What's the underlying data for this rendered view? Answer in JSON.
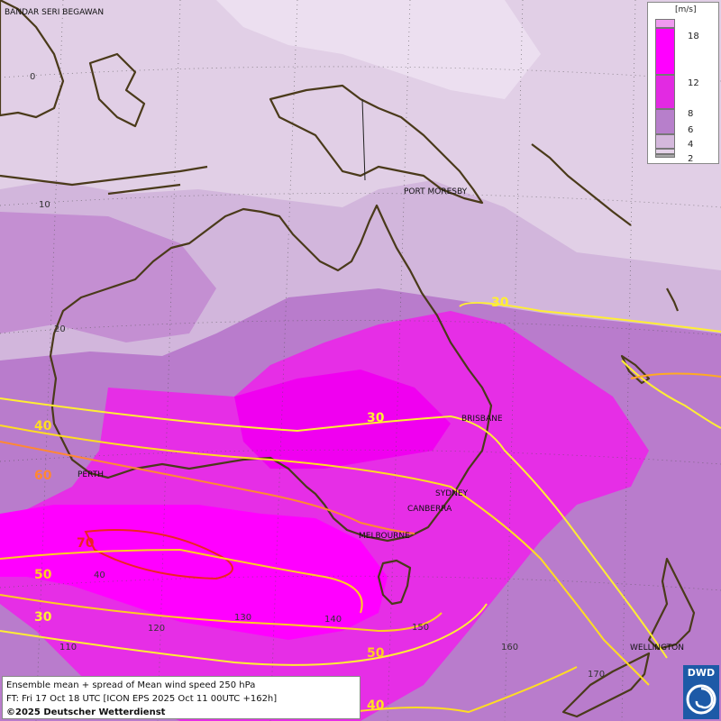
{
  "legend": {
    "unit": "[m/s]",
    "bins": [
      {
        "label": "2",
        "color": "#a8a8a8"
      },
      {
        "label": "4",
        "color": "#e4d2e8"
      },
      {
        "label": "6",
        "color": "#d4b8dc"
      },
      {
        "label": "8",
        "color": "#b77fcb"
      },
      {
        "label": "12",
        "color": "#e22ae2"
      },
      {
        "label": "18",
        "color": "#ff00ff"
      }
    ]
  },
  "info": {
    "line1": "Ensemble mean + spread of Mean wind speed 250 hPa",
    "line2": "FT: Fri 17 Oct 18 UTC [ICON EPS 2025 Oct 11 00UTC +162h]",
    "line3": "©2025 Deutscher Wetterdienst"
  },
  "logo": {
    "text": "DWD",
    "icon": "weather-swirl-icon"
  },
  "cities": [
    {
      "name": "BANDAR SERI BEGAWAN"
    },
    {
      "name": "PORT MORESBY"
    },
    {
      "name": "BRISBANE"
    },
    {
      "name": "SYDNEY"
    },
    {
      "name": "CANBERRA"
    },
    {
      "name": "MELBOURNE"
    },
    {
      "name": "PERTH"
    },
    {
      "name": "WELLINGTON"
    }
  ],
  "grid_labels": {
    "lat": [
      "0",
      "10",
      "20",
      "40"
    ],
    "lon": [
      "110",
      "120",
      "130",
      "140",
      "150",
      "160",
      "170"
    ]
  },
  "contours": [
    {
      "value": "30",
      "color": "#ffee33"
    },
    {
      "value": "30",
      "color": "#ffee33"
    },
    {
      "value": "40",
      "color": "#ffdd22"
    },
    {
      "value": "60",
      "color": "#ff8833"
    },
    {
      "value": "70",
      "color": "#ee2222"
    },
    {
      "value": "50",
      "color": "#ffcc22"
    },
    {
      "value": "30",
      "color": "#ffee33"
    },
    {
      "value": "50",
      "color": "#ffcc22"
    },
    {
      "value": "40",
      "color": "#ffdd22"
    }
  ],
  "colors": {
    "contour_30": "#ffee33",
    "contour_40": "#ffdd22",
    "contour_50": "#ffcc22",
    "contour_60": "#ff8833",
    "contour_70": "#ee2222",
    "coastline": "#4a3a1a"
  }
}
